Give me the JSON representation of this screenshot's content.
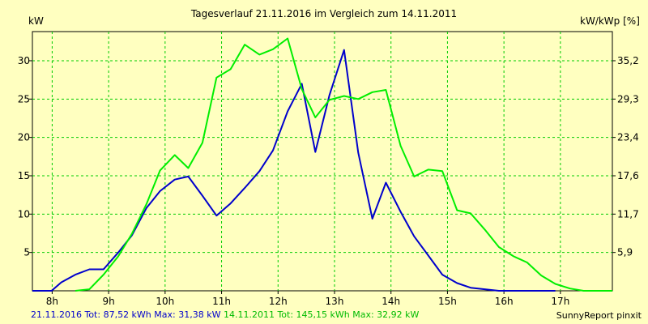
{
  "chart_data": {
    "type": "line",
    "title": "Tagesverlauf 21.11.2016 im Vergleich zum 14.11.2011",
    "ylabel_left": "kW",
    "ylabel_right": "kW/kWp [%]",
    "xlabel": "",
    "xlim": [
      7.65,
      17.92
    ],
    "ylim": [
      0,
      33.8
    ],
    "x_ticks": [
      {
        "value": 8,
        "label": "8h"
      },
      {
        "value": 9,
        "label": "9h"
      },
      {
        "value": 10,
        "label": "10h"
      },
      {
        "value": 11,
        "label": "11h"
      },
      {
        "value": 12,
        "label": "12h"
      },
      {
        "value": 13,
        "label": "13h"
      },
      {
        "value": 14,
        "label": "14h"
      },
      {
        "value": 15,
        "label": "15h"
      },
      {
        "value": 16,
        "label": "16h"
      },
      {
        "value": 17,
        "label": "17h"
      }
    ],
    "y_ticks_left": [
      5,
      10,
      15,
      20,
      25,
      30
    ],
    "y_ticks_right": [
      "5,9",
      "11,7",
      "17,6",
      "23,4",
      "29,3",
      "35,2"
    ],
    "grid": true,
    "series": [
      {
        "name": "21.11.2016",
        "color": "#0000cc",
        "x": [
          7.65,
          7.99,
          8.16,
          8.41,
          8.66,
          8.91,
          9.17,
          9.41,
          9.67,
          9.91,
          10.17,
          10.41,
          10.66,
          10.91,
          11.16,
          11.41,
          11.67,
          11.91,
          12.17,
          12.42,
          12.66,
          12.91,
          13.17,
          13.42,
          13.67,
          13.91,
          14.17,
          14.41,
          14.66,
          14.91,
          15.17,
          15.41,
          15.66,
          15.91,
          16.17,
          16.41,
          16.66,
          16.91
        ],
        "y": [
          0,
          0,
          1.1,
          2.1,
          2.8,
          2.8,
          5.0,
          7.2,
          10.8,
          13.0,
          14.5,
          14.9,
          12.4,
          9.8,
          11.4,
          13.4,
          15.6,
          18.3,
          23.4,
          27.0,
          18.1,
          25.5,
          31.4,
          18.0,
          9.4,
          14.1,
          10.3,
          7.1,
          4.6,
          2.1,
          1.0,
          0.4,
          0.2,
          0,
          0,
          0,
          0,
          0
        ]
      },
      {
        "name": "14.11.2011",
        "color": "#00ee00",
        "x": [
          8.41,
          8.66,
          8.91,
          9.17,
          9.41,
          9.67,
          9.91,
          10.17,
          10.41,
          10.66,
          10.91,
          11.16,
          11.41,
          11.67,
          11.91,
          12.17,
          12.42,
          12.66,
          12.91,
          13.17,
          13.42,
          13.67,
          13.91,
          14.17,
          14.41,
          14.66,
          14.91,
          15.17,
          15.41,
          15.66,
          15.91,
          16.17,
          16.41,
          16.66,
          16.91,
          17.17,
          17.41,
          17.66,
          17.92
        ],
        "y": [
          0,
          0.2,
          2.1,
          4.5,
          7.4,
          11.3,
          15.7,
          17.7,
          16.0,
          19.3,
          27.8,
          28.9,
          32.1,
          30.8,
          31.5,
          32.9,
          26.3,
          22.6,
          24.9,
          25.4,
          25.0,
          25.9,
          26.2,
          18.9,
          14.9,
          15.8,
          15.6,
          10.5,
          10.1,
          8.0,
          5.7,
          4.5,
          3.7,
          2.0,
          0.9,
          0.3,
          0,
          0,
          0
        ]
      }
    ],
    "summary": [
      {
        "series": "21.11.2016",
        "text": "21.11.2016 Tot: 87,52 kWh Max: 31,38 kW",
        "color": "#0000cc"
      },
      {
        "series": "14.11.2011",
        "text": "14.11.2011 Tot: 145,15 kWh Max: 32,92 kW",
        "color": "#00bb00"
      }
    ],
    "credit": "SunnyReport pinxit"
  },
  "colors": {
    "background": "#ffffc0",
    "grid": "#00cc00",
    "axis": "#000000"
  }
}
